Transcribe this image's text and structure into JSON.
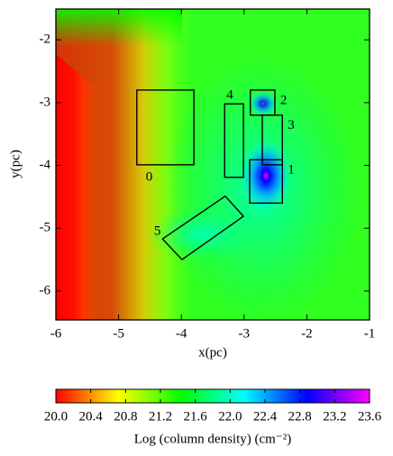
{
  "chart_data": {
    "type": "heatmap",
    "xlabel": "x(pc)",
    "ylabel": "y(pc)",
    "xlim": [
      -6,
      -1
    ],
    "ylim": [
      -6.46,
      -1.51
    ],
    "xticks": [
      -6,
      -5,
      -4,
      -3,
      -2,
      -1
    ],
    "yticks": [
      -6,
      -5,
      -4,
      -3,
      -2
    ],
    "colormap": [
      "#ff0000",
      "#ffff00",
      "#00ff00",
      "#00ffff",
      "#0000ff",
      "#ff00ff"
    ],
    "colorbar_label": "Log (column density) (cm⁻²)",
    "clim": [
      20.0,
      23.6
    ],
    "cticks": [
      {
        "value": 20.0,
        "label": "20.0"
      },
      {
        "value": 20.4,
        "label": "20.4"
      },
      {
        "value": 20.8,
        "label": "20.8"
      },
      {
        "value": 21.2,
        "label": "21.2"
      },
      {
        "value": 21.6,
        "label": "21.6"
      },
      {
        "value": 22.0,
        "label": "22.0"
      },
      {
        "value": 22.4,
        "label": "22.4"
      },
      {
        "value": 22.8,
        "label": "22.8"
      },
      {
        "value": 23.2,
        "label": "23.2"
      },
      {
        "value": 23.6,
        "label": "23.6"
      }
    ],
    "regions": [
      {
        "label": "0",
        "label_side": "below",
        "x": [
          -4.71,
          -3.8
        ],
        "y": [
          -3.99,
          -2.8
        ]
      },
      {
        "label": "1",
        "label_side": "right",
        "x": [
          -2.91,
          -2.39
        ],
        "y": [
          -4.6,
          -3.91
        ]
      },
      {
        "label": "2",
        "label_side": "right",
        "x": [
          -2.9,
          -2.51
        ],
        "y": [
          -3.2,
          -2.8
        ]
      },
      {
        "label": "3",
        "label_side": "right",
        "x": [
          -2.71,
          -2.39
        ],
        "y": [
          -3.99,
          -3.2
        ]
      },
      {
        "label": "4",
        "label_side": "top",
        "x": [
          -3.31,
          -3.01
        ],
        "y": [
          -4.19,
          -3.02
        ]
      },
      {
        "label": "5",
        "label_side": "left",
        "cx": [
          -4.3,
          -3.3,
          -3.01,
          -3.99
        ],
        "cy": [
          -5.17,
          -4.49,
          -4.81,
          -5.5
        ]
      }
    ]
  }
}
